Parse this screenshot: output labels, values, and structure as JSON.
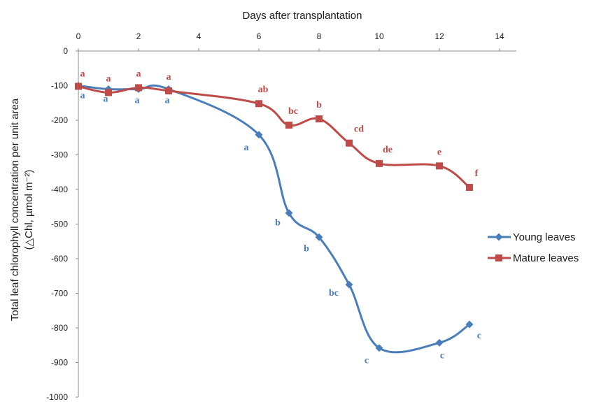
{
  "chart_data": {
    "type": "line",
    "title": "",
    "xlabel": "Days after transplantation",
    "ylabel_line1": "Total leaf chlorophyll concentration per unit area",
    "ylabel_line2": "(△Chl, µmol m⁻²)",
    "x_axis_position": "top",
    "xlim": [
      0,
      14
    ],
    "ylim": [
      -1000,
      0
    ],
    "x_ticks": [
      0,
      2,
      4,
      6,
      8,
      10,
      12,
      14
    ],
    "x_tick_labels": [
      "0",
      "2",
      "4",
      "6",
      "8",
      "10",
      "12",
      "14"
    ],
    "y_ticks": [
      0,
      -100,
      -200,
      -300,
      -400,
      -500,
      -600,
      -700,
      -800,
      -900,
      -1000
    ],
    "y_tick_labels": [
      "0",
      "-100",
      "-200",
      "-300",
      "-400",
      "-500",
      "-600",
      "-700",
      "-800",
      "-900",
      "-1000"
    ],
    "grid": false,
    "legend_position": "right",
    "series": [
      {
        "name": "Young leaves",
        "color": "#4a7ebb",
        "marker": "diamond",
        "x": [
          0,
          1,
          2,
          3,
          6,
          7,
          8,
          9,
          10,
          12,
          13
        ],
        "y": [
          -100,
          -110,
          -110,
          -110,
          -242,
          -468,
          -538,
          -675,
          -858,
          -843,
          -790
        ],
        "labels": [
          "a",
          "a",
          "a",
          "a",
          "a",
          "b",
          "b",
          "bc",
          "c",
          "c",
          "c"
        ]
      },
      {
        "name": "Mature leaves",
        "color": "#be4b48",
        "marker": "square",
        "x": [
          0,
          1,
          2,
          3,
          6,
          7,
          8,
          9,
          10,
          12,
          13
        ],
        "y": [
          -102,
          -120,
          -106,
          -115,
          -152,
          -214,
          -196,
          -266,
          -325,
          -332,
          -394
        ],
        "labels": [
          "a",
          "a",
          "a",
          "a",
          "ab",
          "bc",
          "b",
          "cd",
          "de",
          "e",
          "f"
        ]
      }
    ]
  }
}
